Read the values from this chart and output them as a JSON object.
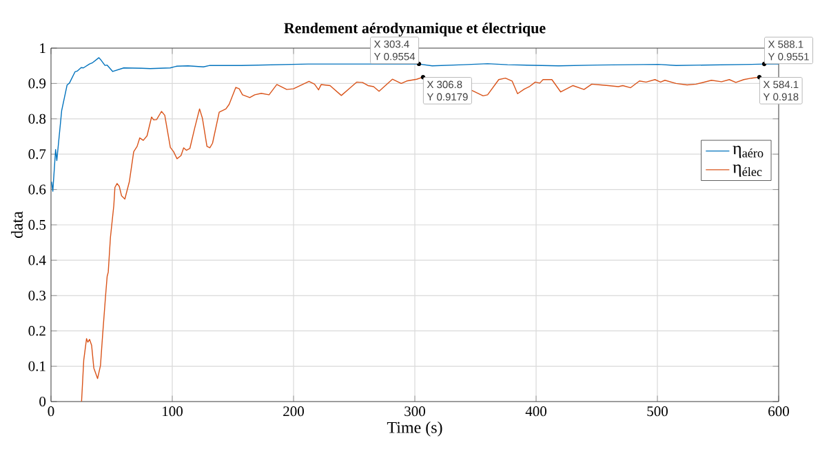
{
  "chart_data": {
    "type": "line",
    "title": "Rendement aérodynamique et électrique",
    "xlabel": "Time (s)",
    "ylabel": "data",
    "xlim": [
      0,
      600
    ],
    "xticks": [
      0,
      100,
      200,
      300,
      400,
      500,
      600
    ],
    "ylim": [
      0,
      1
    ],
    "yticks": [
      0,
      0.1,
      0.2,
      0.3,
      0.4,
      0.5,
      0.6,
      0.7,
      0.8,
      0.9,
      1
    ],
    "grid": true,
    "legend": "right",
    "marker": "none",
    "line_style": "solid",
    "series": [
      {
        "name": "η$_{aéro}$",
        "color": "#0072bd",
        "x": [
          0.5,
          1.5,
          3.8,
          4.8,
          8.8,
          13.3,
          15.2,
          19.8,
          21.6,
          24.9,
          26.7,
          31.7,
          34.4,
          39.5,
          40.8,
          44.5,
          46.3,
          50.9,
          60,
          74.6,
          81.8,
          98.3,
          103.8,
          113,
          125.7,
          131,
          144,
          157,
          212,
          250,
          303.4,
          314.3,
          340,
          360,
          376.5,
          418.6,
          450,
          500.9,
          515.4,
          577.6,
          588.1,
          600
        ],
        "values": [
          0.622,
          0.595,
          0.713,
          0.682,
          0.823,
          0.896,
          0.901,
          0.933,
          0.935,
          0.945,
          0.944,
          0.955,
          0.959,
          0.973,
          0.968,
          0.951,
          0.952,
          0.934,
          0.944,
          0.943,
          0.942,
          0.944,
          0.949,
          0.95,
          0.947,
          0.951,
          0.951,
          0.951,
          0.955,
          0.955,
          0.955,
          0.95,
          0.953,
          0.956,
          0.953,
          0.95,
          0.952,
          0.954,
          0.951,
          0.954,
          0.955,
          0.955
        ]
      },
      {
        "name": "η$_{élec}$",
        "color": "#d95319",
        "x": [
          25.2,
          27,
          29.3,
          30.4,
          31.8,
          33.5,
          35.3,
          38.4,
          40.8,
          42.6,
          45,
          46.3,
          47.2,
          49,
          51.8,
          52.7,
          54.5,
          56.3,
          58.2,
          60.9,
          64.6,
          68.2,
          71,
          73.2,
          76.1,
          79.2,
          82.9,
          84.7,
          87.1,
          91.1,
          93.8,
          98.4,
          101.1,
          103.9,
          107.2,
          109.4,
          111.6,
          114.5,
          118.5,
          122.5,
          124.9,
          128.6,
          131,
          133.2,
          138.7,
          144.2,
          146.9,
          152.4,
          155.2,
          157.9,
          163.9,
          168,
          173.4,
          179.8,
          186.2,
          194.4,
          199.9,
          212.7,
          217.3,
          220.6,
          222.8,
          230.1,
          239.4,
          252.2,
          256.8,
          261.4,
          266,
          270.5,
          281.5,
          288.8,
          293.3,
          301.5,
          306.8,
          347.2,
          356.3,
          360,
          369.2,
          374.7,
          380.2,
          384.7,
          390.2,
          394.8,
          399.3,
          403,
          405.7,
          413,
          420.3,
          430.4,
          439.5,
          445.9,
          453.2,
          459.6,
          467.8,
          471.5,
          477.9,
          485.2,
          490.7,
          498,
          502.6,
          506.2,
          515.4,
          524.5,
          531.8,
          544.6,
          552.9,
          559.3,
          564.7,
          571.2,
          577.6,
          584.1
        ],
        "values": [
          0,
          0.117,
          0.178,
          0.168,
          0.176,
          0.159,
          0.095,
          0.065,
          0.102,
          0.19,
          0.299,
          0.354,
          0.366,
          0.464,
          0.555,
          0.606,
          0.617,
          0.609,
          0.582,
          0.573,
          0.622,
          0.707,
          0.722,
          0.746,
          0.739,
          0.752,
          0.805,
          0.797,
          0.798,
          0.821,
          0.81,
          0.719,
          0.707,
          0.687,
          0.696,
          0.718,
          0.711,
          0.716,
          0.774,
          0.828,
          0.801,
          0.722,
          0.718,
          0.731,
          0.819,
          0.828,
          0.841,
          0.889,
          0.885,
          0.868,
          0.86,
          0.868,
          0.872,
          0.868,
          0.897,
          0.883,
          0.885,
          0.906,
          0.898,
          0.882,
          0.897,
          0.894,
          0.866,
          0.904,
          0.903,
          0.894,
          0.891,
          0.878,
          0.912,
          0.9,
          0.907,
          0.912,
          0.918,
          0.88,
          0.865,
          0.868,
          0.911,
          0.915,
          0.907,
          0.871,
          0.884,
          0.892,
          0.904,
          0.901,
          0.911,
          0.911,
          0.876,
          0.894,
          0.883,
          0.898,
          0.896,
          0.894,
          0.891,
          0.894,
          0.888,
          0.907,
          0.904,
          0.911,
          0.904,
          0.909,
          0.9,
          0.896,
          0.898,
          0.909,
          0.905,
          0.911,
          0.903,
          0.911,
          0.915,
          0.918
        ]
      }
    ],
    "annotations": [
      {
        "text": "X 303.4",
        "x": 303.4,
        "y": 0.9554
      },
      {
        "text": "Y 0.9554",
        "x": 303.4,
        "y": 0.9554
      },
      {
        "text": "X 306.8",
        "x": 306.8,
        "y": 0.9179
      },
      {
        "text": "Y 0.9179",
        "x": 306.8,
        "y": 0.9179
      },
      {
        "text": "X 588.1",
        "x": 588.1,
        "y": 0.9551
      },
      {
        "text": "Y 0.9551",
        "x": 588.1,
        "y": 0.9551
      },
      {
        "text": "X 584.1",
        "x": 584.1,
        "y": 0.918
      },
      {
        "text": "Y 0.918",
        "x": 584.1,
        "y": 0.918
      }
    ]
  }
}
